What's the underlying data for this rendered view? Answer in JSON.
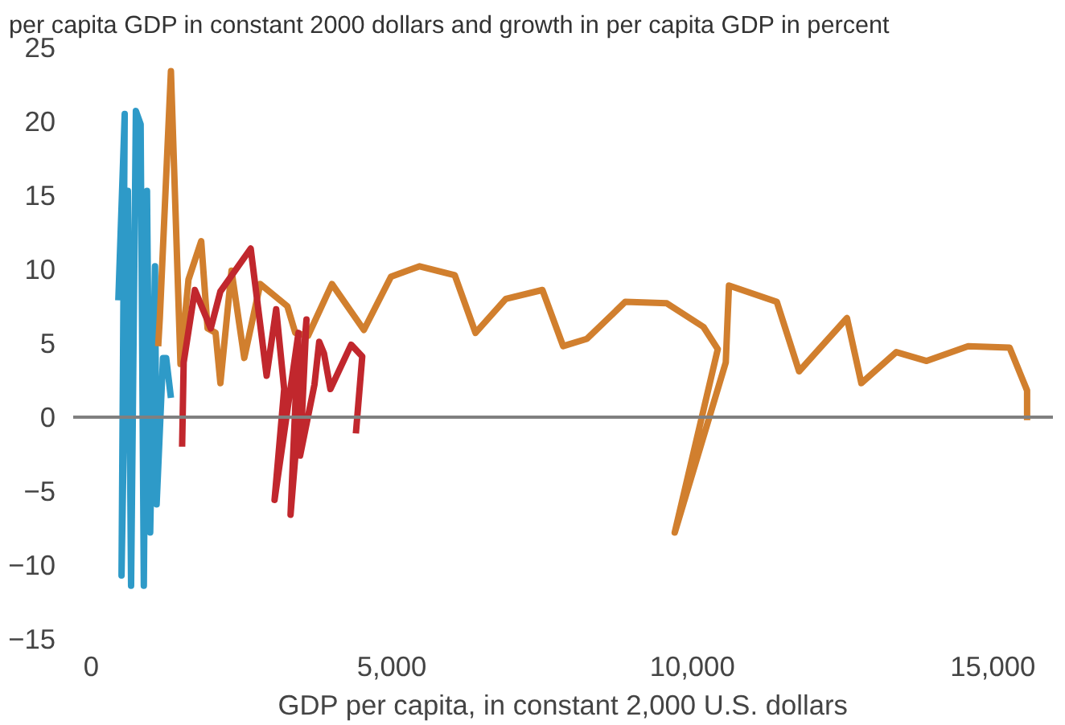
{
  "chart_data": {
    "type": "line",
    "title": "per capita GDP in constant 2000 dollars and growth in per capita GDP in percent",
    "xlabel": "GDP per capita, in constant 2,000 U.S. dollars",
    "xlim": [
      -300,
      16000
    ],
    "ylim": [
      -15,
      25
    ],
    "xticks": [
      0,
      {
        "value": 5000,
        "label": "5,000"
      },
      {
        "value": 10000,
        "label": "10,000"
      },
      {
        "value": 15000,
        "label": "15,000"
      }
    ],
    "yticks": [
      -15,
      -10,
      -5,
      0,
      5,
      10,
      15,
      20,
      25
    ],
    "grid": false,
    "line_style": "solid",
    "ref_lines": [
      {
        "axis": "y",
        "value": 0,
        "label": null,
        "color": "#808080"
      }
    ],
    "series": [
      {
        "color": "#2e9ac8",
        "x": [
          451,
          557,
          504,
          610,
          663,
          743,
          822,
          875,
          928,
          981,
          1061,
          1088,
          1194,
          1247,
          1326
        ],
        "values": [
          7.9,
          20.5,
          -10.7,
          15.3,
          -11.4,
          20.7,
          19.8,
          -11.4,
          15.3,
          -7.8,
          10.2,
          -5.9,
          4.0,
          4.0,
          1.3
        ]
      },
      {
        "color": "#d17f2e",
        "x": [
          1114,
          1141,
          1326,
          1485,
          1618,
          1830,
          1936,
          2069,
          2149,
          2334,
          2546,
          2812,
          3263,
          3395,
          3607,
          4005,
          4536,
          4987,
          5464,
          6048,
          6393,
          6897,
          7507,
          7851,
          8249,
          8886,
          9576,
          10186,
          10424,
          9708,
          10557,
          10610,
          11406,
          11777,
          12573,
          12812,
          13395,
          13899,
          14589,
          15279,
          15570,
          15570
        ],
        "values": [
          4.8,
          6.7,
          23.4,
          3.6,
          9.3,
          11.9,
          6.0,
          5.7,
          2.3,
          9.9,
          4.0,
          9.0,
          7.5,
          5.7,
          5.5,
          9.0,
          5.9,
          9.5,
          10.2,
          9.6,
          5.7,
          8.0,
          8.6,
          4.8,
          5.3,
          7.8,
          7.7,
          6.1,
          4.6,
          -7.8,
          3.7,
          8.9,
          7.8,
          3.1,
          6.7,
          2.3,
          4.4,
          3.8,
          4.8,
          4.7,
          1.8,
          -0.2
        ]
      },
      {
        "color": "#c1272d",
        "x": [
          1512,
          1538,
          1724,
          1989,
          2149,
          2653,
          2918,
          3077,
          3210,
          3050,
          3448,
          3316,
          3581,
          3475,
          3714,
          3793,
          3873,
          3979,
          4324,
          4509,
          4403
        ],
        "values": [
          -2.0,
          3.7,
          8.6,
          6.0,
          8.5,
          11.4,
          2.8,
          7.3,
          1.9,
          -5.6,
          5.7,
          -6.6,
          6.6,
          -2.6,
          2.2,
          5.1,
          4.3,
          1.9,
          4.9,
          4.1,
          -1.1
        ]
      }
    ]
  }
}
